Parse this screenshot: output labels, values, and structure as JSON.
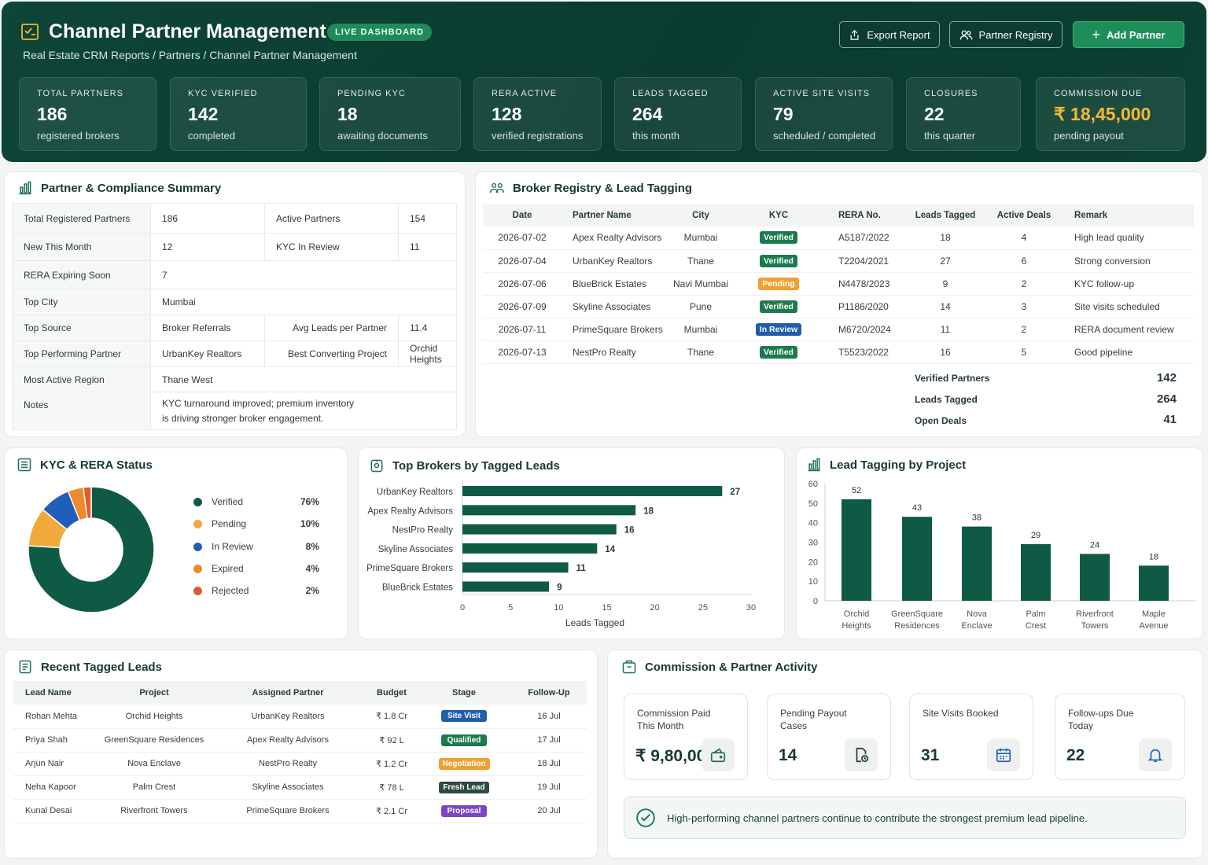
{
  "header": {
    "title": "Channel Partner Management",
    "live_badge": "LIVE DASHBOARD",
    "breadcrumb": "Real Estate CRM Reports / Partners / Channel Partner Management",
    "buttons": {
      "export": "Export Report",
      "registry": "Partner Registry",
      "add": "Add Partner"
    }
  },
  "kpis": [
    {
      "label": "TOTAL PARTNERS",
      "value": "186",
      "sub": "registered brokers"
    },
    {
      "label": "KYC VERIFIED",
      "value": "142",
      "sub": "completed"
    },
    {
      "label": "PENDING KYC",
      "value": "18",
      "sub": "awaiting documents"
    },
    {
      "label": "RERA ACTIVE",
      "value": "128",
      "sub": "verified registrations"
    },
    {
      "label": "LEADS TAGGED",
      "value": "264",
      "sub": "this month"
    },
    {
      "label": "ACTIVE SITE VISITS",
      "value": "79",
      "sub": "scheduled / completed"
    },
    {
      "label": "CLOSURES",
      "value": "22",
      "sub": "this quarter"
    },
    {
      "label": "COMMISSION DUE",
      "value": "₹ 18,45,000",
      "sub": "pending payout"
    }
  ],
  "summary": {
    "title": "Partner & Compliance Summary",
    "rows": {
      "total_k": "Total Registered Partners",
      "total_v": "186",
      "active_k": "Active Partners",
      "active_v": "154",
      "new_k": "New This Month",
      "new_v": "12",
      "review_k": "KYC In Review",
      "review_v": "11",
      "rera_k": "RERA Expiring Soon",
      "rera_v": "7",
      "city_k": "Top City",
      "city_v": "Mumbai",
      "source_k": "Top Source",
      "source_v": "Broker Referrals",
      "avg_k": "Avg Leads per Partner",
      "avg_v": "11.4",
      "perf_k": "Top Performing Partner",
      "perf_v": "UrbanKey Realtors",
      "proj_k": "Best Converting Project",
      "proj_v": "Orchid Heights",
      "region_k": "Most Active Region",
      "region_v": "Thane West",
      "notes_k": "Notes",
      "notes_v": "KYC turnaround improved; premium inventory is driving stronger broker engagement."
    }
  },
  "registry": {
    "title": "Broker Registry & Lead Tagging",
    "columns": [
      "Date",
      "Partner Name",
      "City",
      "KYC",
      "RERA No.",
      "Leads Tagged",
      "Active Deals",
      "Remark"
    ],
    "rows": [
      {
        "date": "2026-07-02",
        "name": "Apex Realty Advisors",
        "city": "Mumbai",
        "kyc": "Verified",
        "kyc_class": "b-green",
        "rera": "A5187/2022",
        "leads": "18",
        "deals": "4",
        "remark": "High lead quality"
      },
      {
        "date": "2026-07-04",
        "name": "UrbanKey Realtors",
        "city": "Thane",
        "kyc": "Verified",
        "kyc_class": "b-green",
        "rera": "T2204/2021",
        "leads": "27",
        "deals": "6",
        "remark": "Strong conversion"
      },
      {
        "date": "2026-07-06",
        "name": "BlueBrick Estates",
        "city": "Navi Mumbai",
        "kyc": "Pending",
        "kyc_class": "b-orange",
        "rera": "N4478/2023",
        "leads": "9",
        "deals": "2",
        "remark": "KYC follow-up"
      },
      {
        "date": "2026-07-09",
        "name": "Skyline Associates",
        "city": "Pune",
        "kyc": "Verified",
        "kyc_class": "b-green",
        "rera": "P1186/2020",
        "leads": "14",
        "deals": "3",
        "remark": "Site visits scheduled"
      },
      {
        "date": "2026-07-11",
        "name": "PrimeSquare Brokers",
        "city": "Mumbai",
        "kyc": "In Review",
        "kyc_class": "b-blue",
        "rera": "M6720/2024",
        "leads": "11",
        "deals": "2",
        "remark": "RERA document review"
      },
      {
        "date": "2026-07-13",
        "name": "NestPro Realty",
        "city": "Thane",
        "kyc": "Verified",
        "kyc_class": "b-green",
        "rera": "T5523/2022",
        "leads": "16",
        "deals": "5",
        "remark": "Good pipeline"
      }
    ],
    "totals": [
      {
        "label": "Verified Partners",
        "value": "142"
      },
      {
        "label": "Leads Tagged",
        "value": "264"
      },
      {
        "label": "Open Deals",
        "value": "41"
      }
    ]
  },
  "kyc_status": {
    "title": "KYC & RERA Status",
    "colors": [
      "#0f5a45",
      "#f0a93a",
      "#1f5fb8",
      "#ee8b2c",
      "#e4582e"
    ]
  },
  "top_brokers": {
    "title": "Top Brokers by Tagged Leads",
    "bar_color": "#0f5a45"
  },
  "project_leads": {
    "title": "Lead Tagging by Project",
    "bar_color": "#0f5a45"
  },
  "chart_data": [
    {
      "type": "pie",
      "labels": [
        "Verified",
        "Pending",
        "In Review",
        "Expired",
        "Rejected"
      ],
      "values": [
        76,
        10,
        8,
        4,
        2
      ],
      "value_labels": [
        "76%",
        "10%",
        "8%",
        "4%",
        "2%"
      ],
      "legend": "right"
    },
    {
      "type": "bar",
      "orientation": "horizontal",
      "categories": [
        "UrbanKey Realtors",
        "Apex Realty Advisors",
        "NestPro Realty",
        "Skyline Associates",
        "PrimeSquare Brokers",
        "BlueBrick Estates"
      ],
      "values": [
        27,
        18,
        16,
        14,
        11,
        9
      ],
      "xlabel": "Leads Tagged",
      "xlim": [
        0,
        30
      ],
      "xticks": [
        0,
        5,
        10,
        15,
        20,
        25,
        30
      ]
    },
    {
      "type": "bar",
      "categories": [
        [
          "Orchid",
          "Heights"
        ],
        [
          "GreenSquare",
          "Residences"
        ],
        [
          "Nova",
          "Enclave"
        ],
        [
          "Palm",
          "Crest"
        ],
        [
          "Riverfront",
          "Towers"
        ],
        [
          "Maple",
          "Avenue"
        ]
      ],
      "values": [
        52,
        43,
        38,
        29,
        24,
        18
      ],
      "ylim": [
        0,
        60
      ],
      "yticks": [
        0,
        10,
        20,
        30,
        40,
        50,
        60
      ]
    }
  ],
  "recent_leads": {
    "title": "Recent Tagged Leads",
    "columns": [
      "Lead Name",
      "Project",
      "Assigned Partner",
      "Budget",
      "Stage",
      "Follow-Up"
    ],
    "rows": [
      {
        "name": "Rohan Mehta",
        "project": "Orchid Heights",
        "partner": "UrbanKey Realtors",
        "budget": "₹ 1.8 Cr",
        "stage": "Site Visit",
        "stage_class": "b-site",
        "follow": "16 Jul"
      },
      {
        "name": "Priya Shah",
        "project": "GreenSquare Residences",
        "partner": "Apex Realty Advisors",
        "budget": "₹ 92 L",
        "stage": "Qualified",
        "stage_class": "b-green",
        "follow": "17 Jul"
      },
      {
        "name": "Arjun Nair",
        "project": "Nova Enclave",
        "partner": "NestPro Realty",
        "budget": "₹ 1.2 Cr",
        "stage": "Negotiation",
        "stage_class": "b-orange",
        "follow": "18 Jul"
      },
      {
        "name": "Neha Kapoor",
        "project": "Palm Crest",
        "partner": "Skyline Associates",
        "budget": "₹ 78 L",
        "stage": "Fresh Lead",
        "stage_class": "b-dark",
        "follow": "19 Jul"
      },
      {
        "name": "Kunal Desai",
        "project": "Riverfront Towers",
        "partner": "PrimeSquare Brokers",
        "budget": "₹ 2.1 Cr",
        "stage": "Proposal",
        "stage_class": "b-purple",
        "follow": "20 Jul"
      }
    ]
  },
  "commission": {
    "title": "Commission & Partner Activity",
    "cards": [
      {
        "label": "Commission Paid This Month",
        "value": "₹ 9,80,000",
        "icon": "wallet-icon"
      },
      {
        "label": "Pending Payout Cases",
        "value": "14",
        "icon": "file-clock-icon"
      },
      {
        "label": "Site Visits Booked",
        "value": "31",
        "icon": "calendar-icon"
      },
      {
        "label": "Follow-ups Due Today",
        "value": "22",
        "icon": "bell-icon"
      }
    ],
    "note": "High-performing channel partners continue to contribute the strongest premium lead pipeline."
  }
}
